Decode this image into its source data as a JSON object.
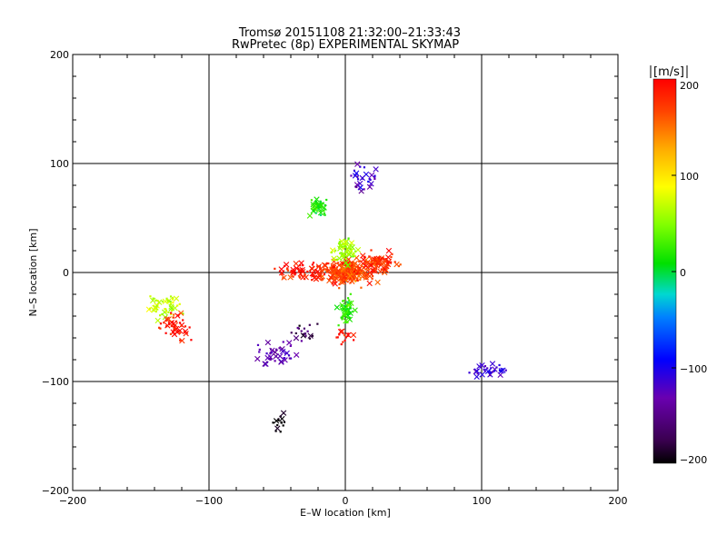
{
  "chart_data": {
    "type": "scatter",
    "title": "Tromsø 20151108 21:32:00–21:33:43",
    "subtitle": "RwPretec (8p) EXPERIMENTAL SKYMAP",
    "xlabel": "E–W location [km]",
    "ylabel": "N–S location [km]",
    "xlim": [
      -200,
      200
    ],
    "ylim": [
      -200,
      200
    ],
    "xticks": [
      "−200",
      "−100",
      "0",
      "100",
      "200"
    ],
    "yticks": [
      "−200",
      "−100",
      "0",
      "100",
      "200"
    ],
    "grid": true,
    "colorbar": {
      "label": "[m/s]",
      "range": [
        -200,
        200
      ],
      "ticks": [
        "200",
        "100",
        "0",
        "−100",
        "−200"
      ],
      "colormap": "rainbow (black → purple → blue → cyan → green → yellow → orange → red)"
    },
    "markers": {
      "cross": "large detections",
      "dot": "small detections"
    },
    "clusters": [
      {
        "x": 0,
        "y": 0,
        "spread": [
          18,
          10
        ],
        "velocity": 170,
        "count": 260
      },
      {
        "x": 0,
        "y": 20,
        "spread": [
          8,
          10
        ],
        "velocity": 60,
        "count": 60
      },
      {
        "x": 25,
        "y": 10,
        "spread": [
          12,
          8
        ],
        "velocity": 180,
        "count": 80
      },
      {
        "x": 0,
        "y": -35,
        "spread": [
          6,
          12
        ],
        "velocity": 20,
        "count": 50
      },
      {
        "x": -30,
        "y": 0,
        "spread": [
          18,
          8
        ],
        "velocity": 190,
        "count": 60
      },
      {
        "x": -20,
        "y": 60,
        "spread": [
          6,
          6
        ],
        "velocity": 20,
        "count": 40
      },
      {
        "x": 12,
        "y": 85,
        "spread": [
          10,
          10
        ],
        "velocity": -120,
        "count": 30
      },
      {
        "x": -135,
        "y": -32,
        "spread": [
          12,
          10
        ],
        "velocity": 70,
        "count": 50
      },
      {
        "x": -125,
        "y": -50,
        "spread": [
          12,
          10
        ],
        "velocity": 190,
        "count": 50
      },
      {
        "x": -50,
        "y": -75,
        "spread": [
          15,
          10
        ],
        "velocity": -130,
        "count": 40
      },
      {
        "x": -30,
        "y": -55,
        "spread": [
          10,
          8
        ],
        "velocity": -170,
        "count": 20
      },
      {
        "x": -48,
        "y": -138,
        "spread": [
          6,
          8
        ],
        "velocity": -200,
        "count": 15
      },
      {
        "x": 105,
        "y": -90,
        "spread": [
          12,
          6
        ],
        "velocity": -110,
        "count": 30
      },
      {
        "x": 0,
        "y": -60,
        "spread": [
          5,
          5
        ],
        "velocity": 190,
        "count": 15
      }
    ]
  }
}
